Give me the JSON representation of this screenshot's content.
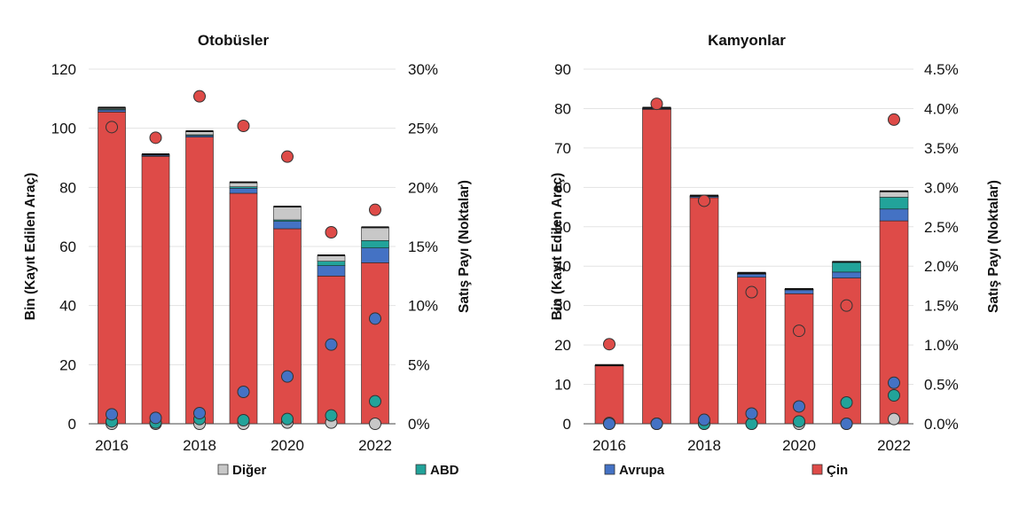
{
  "colors": {
    "cin": "#de4b48",
    "avrupa": "#4472c4",
    "abd": "#22a39a",
    "diger": "#c8c8c8",
    "outline": "#222222",
    "grid": "#e3e3e3"
  },
  "legend": [
    {
      "key": "diger",
      "label": "Diğer"
    },
    {
      "key": "abd",
      "label": "ABD"
    },
    {
      "key": "avrupa",
      "label": "Avrupa"
    },
    {
      "key": "cin",
      "label": "Çin"
    }
  ],
  "chart_data": [
    {
      "type": "bar",
      "stacked": true,
      "title": "Otobüsler",
      "ylabel": "Bin (Kayıt Edilen Araç)",
      "y2label": "Satış Payı (Noktalar)",
      "ylim": [
        0,
        120
      ],
      "yticks": [
        0,
        20,
        40,
        60,
        80,
        100,
        120
      ],
      "y2lim": [
        0,
        30
      ],
      "y2ticks": [
        "0%",
        "5%",
        "10%",
        "15%",
        "20%",
        "25%",
        "30%"
      ],
      "categories": [
        2016,
        2017,
        2018,
        2019,
        2020,
        2021,
        2022
      ],
      "xtick_labels": [
        "2016",
        "2018",
        "2020",
        "2022"
      ],
      "series": [
        {
          "key": "cin",
          "values": [
            105.5,
            90.5,
            97,
            78,
            66,
            50,
            54.5
          ]
        },
        {
          "key": "avrupa",
          "values": [
            0.7,
            0.4,
            0.5,
            1.7,
            2.5,
            3.5,
            5
          ]
        },
        {
          "key": "abd",
          "values": [
            0.3,
            0.1,
            0.3,
            0.5,
            0.5,
            1.5,
            2.5
          ]
        },
        {
          "key": "diger",
          "values": [
            0.5,
            0.2,
            1.2,
            1.5,
            4.5,
            2,
            4.5
          ]
        }
      ],
      "share_points": [
        {
          "key": "cin",
          "values": [
            25.1,
            24.2,
            27.7,
            25.2,
            22.6,
            16.2,
            18.1
          ]
        },
        {
          "key": "avrupa",
          "values": [
            0.8,
            0.5,
            0.9,
            2.7,
            4.0,
            6.7,
            8.9
          ]
        },
        {
          "key": "abd",
          "values": [
            0.2,
            0.1,
            0.4,
            0.3,
            0.4,
            0.7,
            1.9
          ]
        },
        {
          "key": "diger",
          "values": [
            0.0,
            0.0,
            0.0,
            0.0,
            0.1,
            0.1,
            0.0
          ]
        }
      ]
    },
    {
      "type": "bar",
      "stacked": true,
      "title": "Kamyonlar",
      "ylabel": "Bin (Kayıt Edilen Araç)",
      "y2label": "Satış Payı (Noktalar)",
      "ylim": [
        0,
        90
      ],
      "yticks": [
        0,
        10,
        20,
        30,
        40,
        50,
        60,
        70,
        80,
        90
      ],
      "y2lim": [
        0,
        4.5
      ],
      "y2ticks": [
        "0.0%",
        "0.5%",
        "1.0%",
        "1.5%",
        "2.0%",
        "2.5%",
        "3.0%",
        "3.5%",
        "4.0%",
        "4.5%"
      ],
      "categories": [
        2016,
        2017,
        2018,
        2019,
        2020,
        2021,
        2022
      ],
      "xtick_labels": [
        "2016",
        "2018",
        "2020",
        "2022"
      ],
      "series": [
        {
          "key": "cin",
          "values": [
            14.7,
            79.8,
            57.4,
            37.2,
            33,
            37,
            51.5
          ]
        },
        {
          "key": "avrupa",
          "values": [
            0.1,
            0.2,
            0.3,
            0.8,
            1.0,
            1.5,
            3.0
          ]
        },
        {
          "key": "abd",
          "values": [
            0.0,
            0.0,
            0.0,
            0.1,
            0.1,
            2.5,
            3.0
          ]
        },
        {
          "key": "diger",
          "values": [
            0.1,
            0.2,
            0.2,
            0.2,
            0.1,
            0.1,
            1.5
          ]
        }
      ],
      "share_points": [
        {
          "key": "cin",
          "values": [
            1.01,
            4.06,
            2.83,
            1.67,
            1.18,
            1.5,
            3.86
          ]
        },
        {
          "key": "avrupa",
          "values": [
            0.0,
            0.0,
            0.05,
            0.13,
            0.22,
            0.0,
            0.52
          ]
        },
        {
          "key": "abd",
          "values": [
            0.01,
            0.0,
            0.0,
            0.0,
            0.03,
            0.27,
            0.36
          ]
        },
        {
          "key": "diger",
          "values": [
            0.0,
            0.0,
            0.0,
            0.0,
            0.0,
            0.0,
            0.06
          ]
        }
      ]
    }
  ]
}
